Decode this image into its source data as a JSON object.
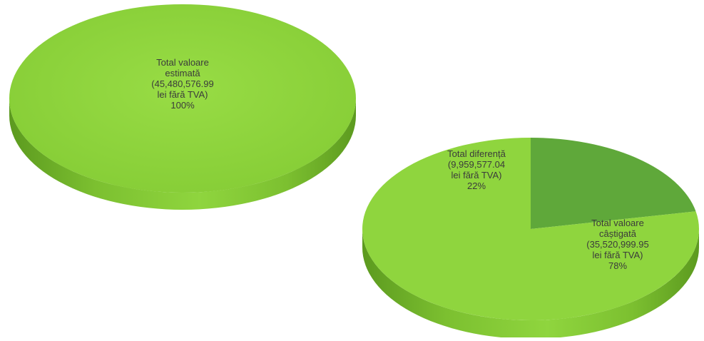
{
  "chart_data": [
    {
      "type": "pie",
      "style": "3d",
      "slices": [
        {
          "lines": [
            "Total valoare",
            "estimată",
            "(45,480,576.99",
            "lei fără TVA)",
            "100%"
          ],
          "value": 45480576.99,
          "percent": 100,
          "color": "#8fd53e"
        }
      ]
    },
    {
      "type": "pie",
      "style": "3d",
      "slices": [
        {
          "lines": [
            "Total diferență",
            "(9,959,577.04",
            "lei fără TVA)",
            "22%"
          ],
          "value": 9959577.04,
          "percent": 22,
          "color": "#5fa83a"
        },
        {
          "lines": [
            "Total valoare",
            "câștigată",
            "(35,520,999.95",
            "lei fără TVA)",
            "78%"
          ],
          "value": 35520999.95,
          "percent": 78,
          "color": "#8fd53e"
        }
      ]
    }
  ]
}
